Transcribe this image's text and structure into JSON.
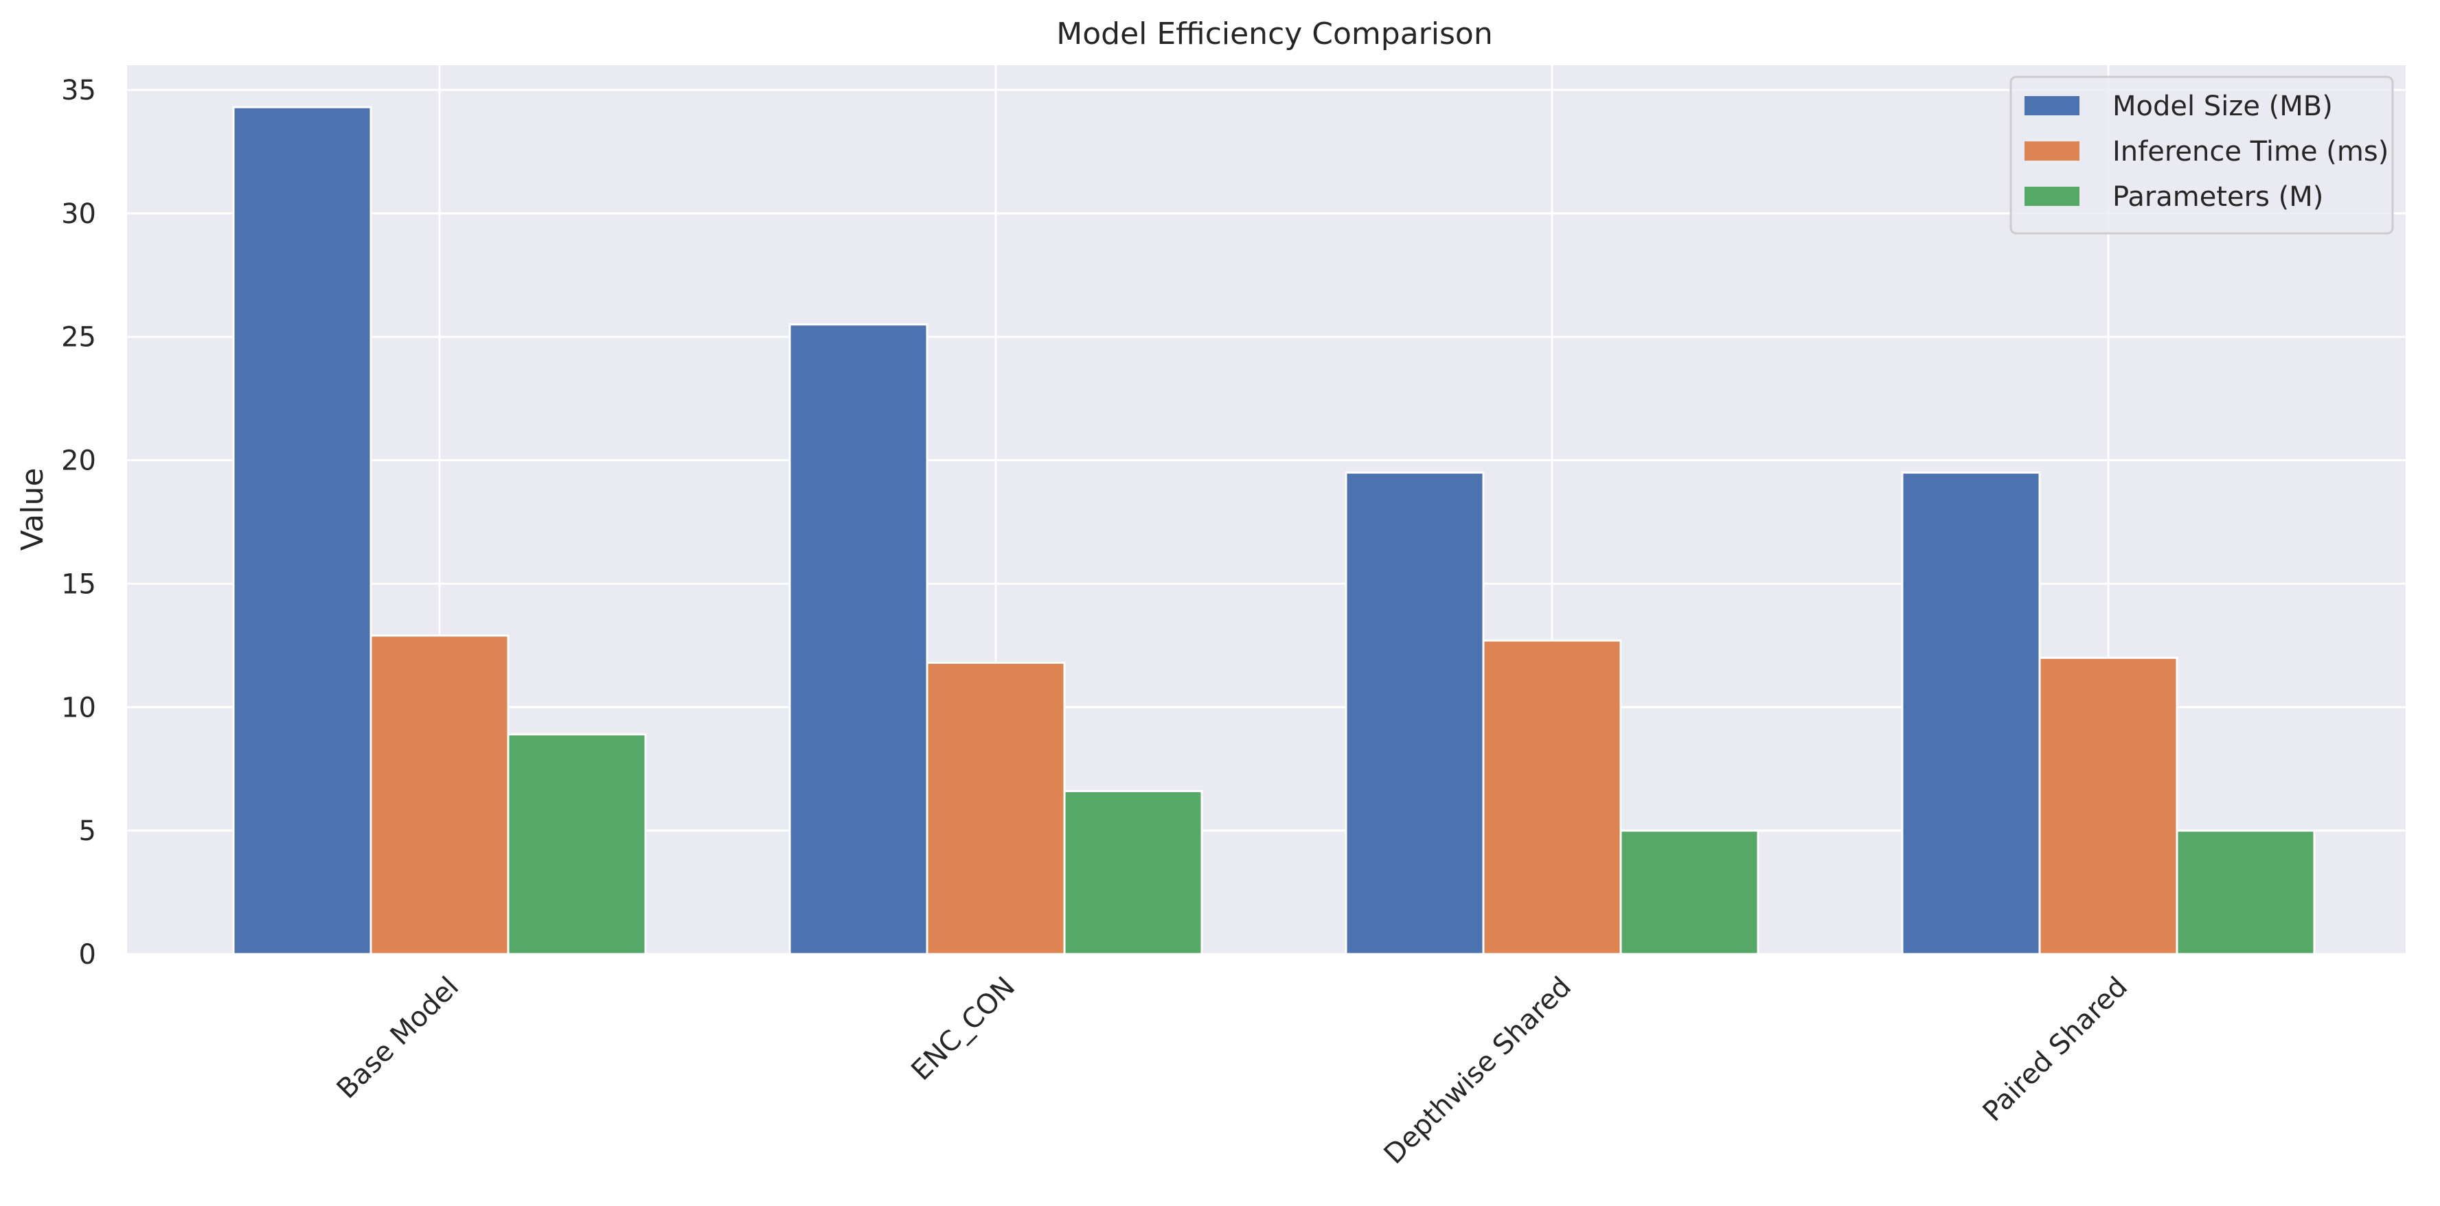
{
  "chart_data": {
    "type": "bar",
    "title": "Model Efficiency Comparison",
    "xlabel": "",
    "ylabel": "Value",
    "categories": [
      "Base Model",
      "ENC_CON",
      "Depthwise Shared",
      "Paired Shared"
    ],
    "series": [
      {
        "name": "Model Size (MB)",
        "color": "#4c72b0",
        "values": [
          34.3,
          25.5,
          19.5,
          19.5
        ]
      },
      {
        "name": "Inference Time (ms)",
        "color": "#dd8452",
        "values": [
          12.9,
          11.8,
          12.7,
          12.0
        ]
      },
      {
        "name": "Parameters (M)",
        "color": "#55a868",
        "values": [
          8.9,
          6.6,
          5.0,
          5.0
        ]
      }
    ],
    "yticks": [
      "0",
      "5",
      "10",
      "15",
      "20",
      "25",
      "30",
      "35"
    ],
    "ylim": [
      0,
      36
    ],
    "grid": true,
    "legend_position": "top-right",
    "background_color": "#eaeaf2",
    "grid_color": "#ffffff"
  }
}
